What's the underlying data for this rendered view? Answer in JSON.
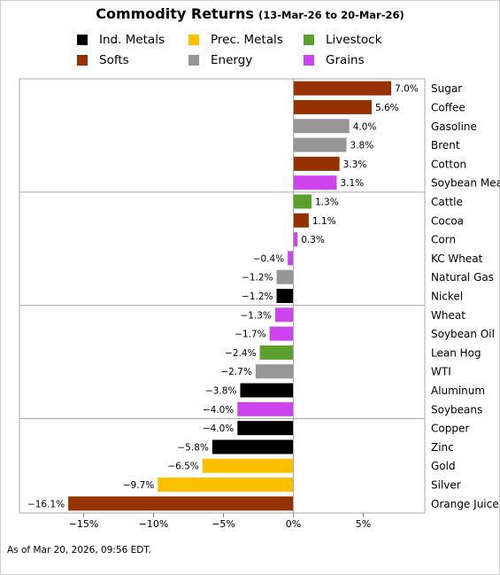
{
  "header": {
    "title": "Commodity Returns",
    "subtitle": "(13-Mar-26 to 20-Mar-26)"
  },
  "legend": [
    {
      "label": "Ind. Metals",
      "color": "#000000"
    },
    {
      "label": "Prec. Metals",
      "color": "#ffc000"
    },
    {
      "label": "Livestock",
      "color": "#5aa02c"
    },
    {
      "label": "Softs",
      "color": "#953200"
    },
    {
      "label": "Energy",
      "color": "#969696"
    },
    {
      "label": "Grains",
      "color": "#cc44ee"
    }
  ],
  "chart_data": {
    "type": "bar",
    "orientation": "horizontal",
    "categories": [
      "Sugar",
      "Coffee",
      "Gasoline",
      "Brent",
      "Cotton",
      "Soybean Meal",
      "Cattle",
      "Cocoa",
      "Corn",
      "KC Wheat",
      "Natural Gas",
      "Nickel",
      "Wheat",
      "Soybean Oil",
      "Lean Hog",
      "WTI",
      "Aluminum",
      "Soybeans",
      "Copper",
      "Zinc",
      "Gold",
      "Silver",
      "Orange Juice"
    ],
    "values": [
      7.0,
      5.6,
      4.0,
      3.8,
      3.3,
      3.1,
      1.3,
      1.1,
      0.3,
      -0.4,
      -1.2,
      -1.2,
      -1.3,
      -1.7,
      -2.4,
      -2.7,
      -3.8,
      -4.0,
      -4.0,
      -5.8,
      -6.5,
      -9.7,
      -16.1
    ],
    "value_labels": [
      "7.0%",
      "5.6%",
      "4.0%",
      "3.8%",
      "3.3%",
      "3.1%",
      "1.3%",
      "1.1%",
      "0.3%",
      "−0.4%",
      "−1.2%",
      "−1.2%",
      "−1.3%",
      "−1.7%",
      "−2.4%",
      "−2.7%",
      "−3.8%",
      "−4.0%",
      "−4.0%",
      "−5.8%",
      "−6.5%",
      "−9.7%",
      "−16.1%"
    ],
    "groups": [
      "Softs",
      "Softs",
      "Energy",
      "Energy",
      "Softs",
      "Grains",
      "Livestock",
      "Softs",
      "Grains",
      "Grains",
      "Energy",
      "Ind. Metals",
      "Grains",
      "Grains",
      "Livestock",
      "Energy",
      "Ind. Metals",
      "Grains",
      "Ind. Metals",
      "Ind. Metals",
      "Prec. Metals",
      "Prec. Metals",
      "Softs"
    ],
    "xlim": [
      -16.5,
      9.8
    ],
    "xticks": [
      -15,
      -10,
      -5,
      0,
      5
    ],
    "xtick_labels": [
      "−15%",
      "−10%",
      "−5%",
      "0%",
      "5%"
    ],
    "separators_after": [
      5,
      11,
      17
    ],
    "xlabel": "",
    "ylabel": "",
    "legend_position": "top",
    "grid": false
  },
  "footnote": "As of Mar 20, 2026, 09:56 EDT."
}
